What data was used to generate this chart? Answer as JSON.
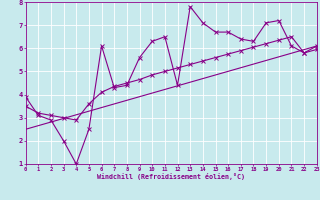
{
  "xlabel": "Windchill (Refroidissement éolien,°C)",
  "background_color": "#c8eaed",
  "grid_color": "#ffffff",
  "line_color": "#880088",
  "x_min": 0,
  "x_max": 23,
  "y_min": 1,
  "y_max": 8,
  "line1_x": [
    0,
    1,
    2,
    3,
    4,
    5,
    6,
    7,
    8,
    9,
    10,
    11,
    12,
    13,
    14,
    15,
    16,
    17,
    18,
    19,
    20,
    21,
    22,
    23
  ],
  "line1_y": [
    3.9,
    3.1,
    2.9,
    2.0,
    1.0,
    2.5,
    6.1,
    4.3,
    4.4,
    5.6,
    6.3,
    6.5,
    4.4,
    7.8,
    7.1,
    6.7,
    6.7,
    6.4,
    6.3,
    7.1,
    7.2,
    6.1,
    5.8,
    6.1
  ],
  "line2_x": [
    0,
    1,
    2,
    3,
    4,
    5,
    6,
    7,
    8,
    9,
    10,
    11,
    12,
    13,
    14,
    15,
    16,
    17,
    18,
    19,
    20,
    21,
    22,
    23
  ],
  "line2_y": [
    3.5,
    3.2,
    3.1,
    3.0,
    2.9,
    3.6,
    4.1,
    4.35,
    4.5,
    4.65,
    4.85,
    5.0,
    5.15,
    5.3,
    5.45,
    5.6,
    5.75,
    5.9,
    6.05,
    6.2,
    6.35,
    6.5,
    5.8,
    5.95
  ],
  "line3_x": [
    0,
    23
  ],
  "line3_y": [
    2.5,
    6.1
  ]
}
